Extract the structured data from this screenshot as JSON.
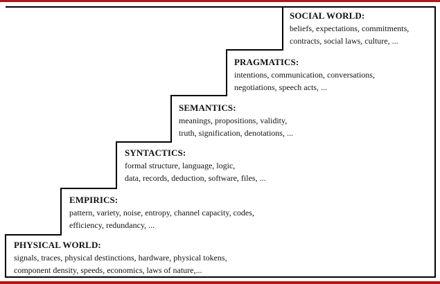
{
  "diagram": {
    "type": "staircase",
    "steps": [
      {
        "title": "PHYSICAL WORLD:",
        "lines": [
          "signals, traces, physical destinctions, hardware, physical tokens,",
          "component density, speeds, economics, laws of nature,..."
        ]
      },
      {
        "title": "EMPIRICS:",
        "lines": [
          "pattern, variety,  noise, entropy, channel capacity, codes,",
          "efficiency, redundancy, ..."
        ]
      },
      {
        "title": "SYNTACTICS:",
        "lines": [
          "formal structure, language, logic,",
          "data, records, deduction, software, files, ..."
        ]
      },
      {
        "title": "SEMANTICS:",
        "lines": [
          "meanings, propositions, validity,",
          "truth, signification, denotations, ..."
        ]
      },
      {
        "title": "PRAGMATICS:",
        "lines": [
          "intentions, communication, conversations,",
          "negotiations, speech acts, ..."
        ]
      },
      {
        "title": "SOCIAL WORLD:",
        "lines": [
          "beliefs, expectations, commitments,",
          "contracts, social laws, culture, ..."
        ]
      }
    ]
  },
  "colors": {
    "frame_rule": "#b01818",
    "line": "#000000",
    "text": "#111111"
  }
}
